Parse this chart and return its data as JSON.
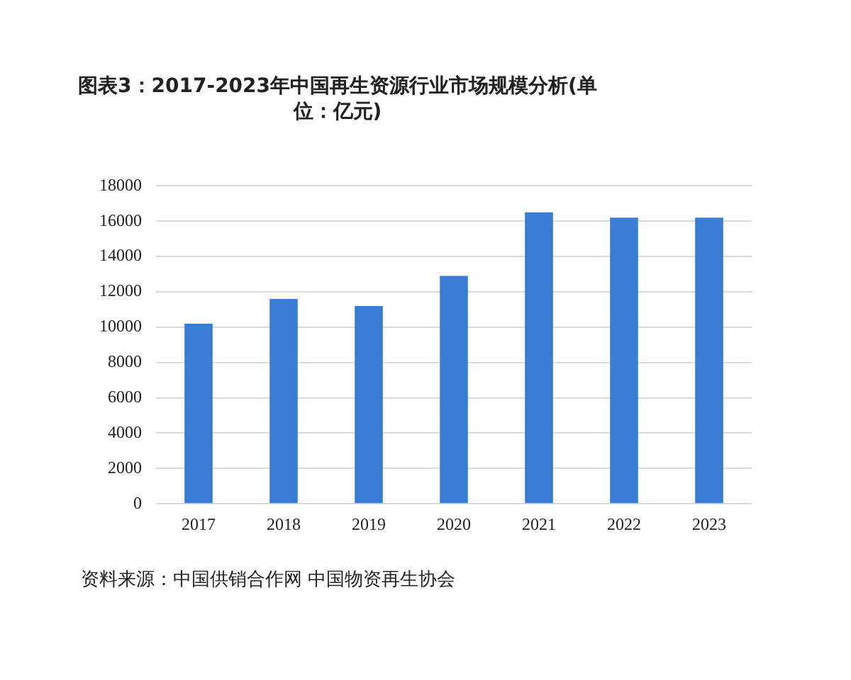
{
  "chart_data": {
    "type": "bar",
    "title": "图表3：2017-2023年中国再生资源行业市场规模分析(单位：亿元)",
    "categories": [
      "2017",
      "2018",
      "2019",
      "2020",
      "2021",
      "2022",
      "2023"
    ],
    "values": [
      10200,
      11600,
      11200,
      12900,
      16500,
      16200,
      16200
    ],
    "color": "#3a7dd6",
    "ylim": [
      0,
      18000
    ],
    "yticks": [
      0,
      2000,
      4000,
      6000,
      8000,
      10000,
      12000,
      14000,
      16000,
      18000
    ],
    "grid": "y",
    "legend": false,
    "annotations": [
      "资料来源：中国供销合作网 中国物资再生协会"
    ]
  }
}
